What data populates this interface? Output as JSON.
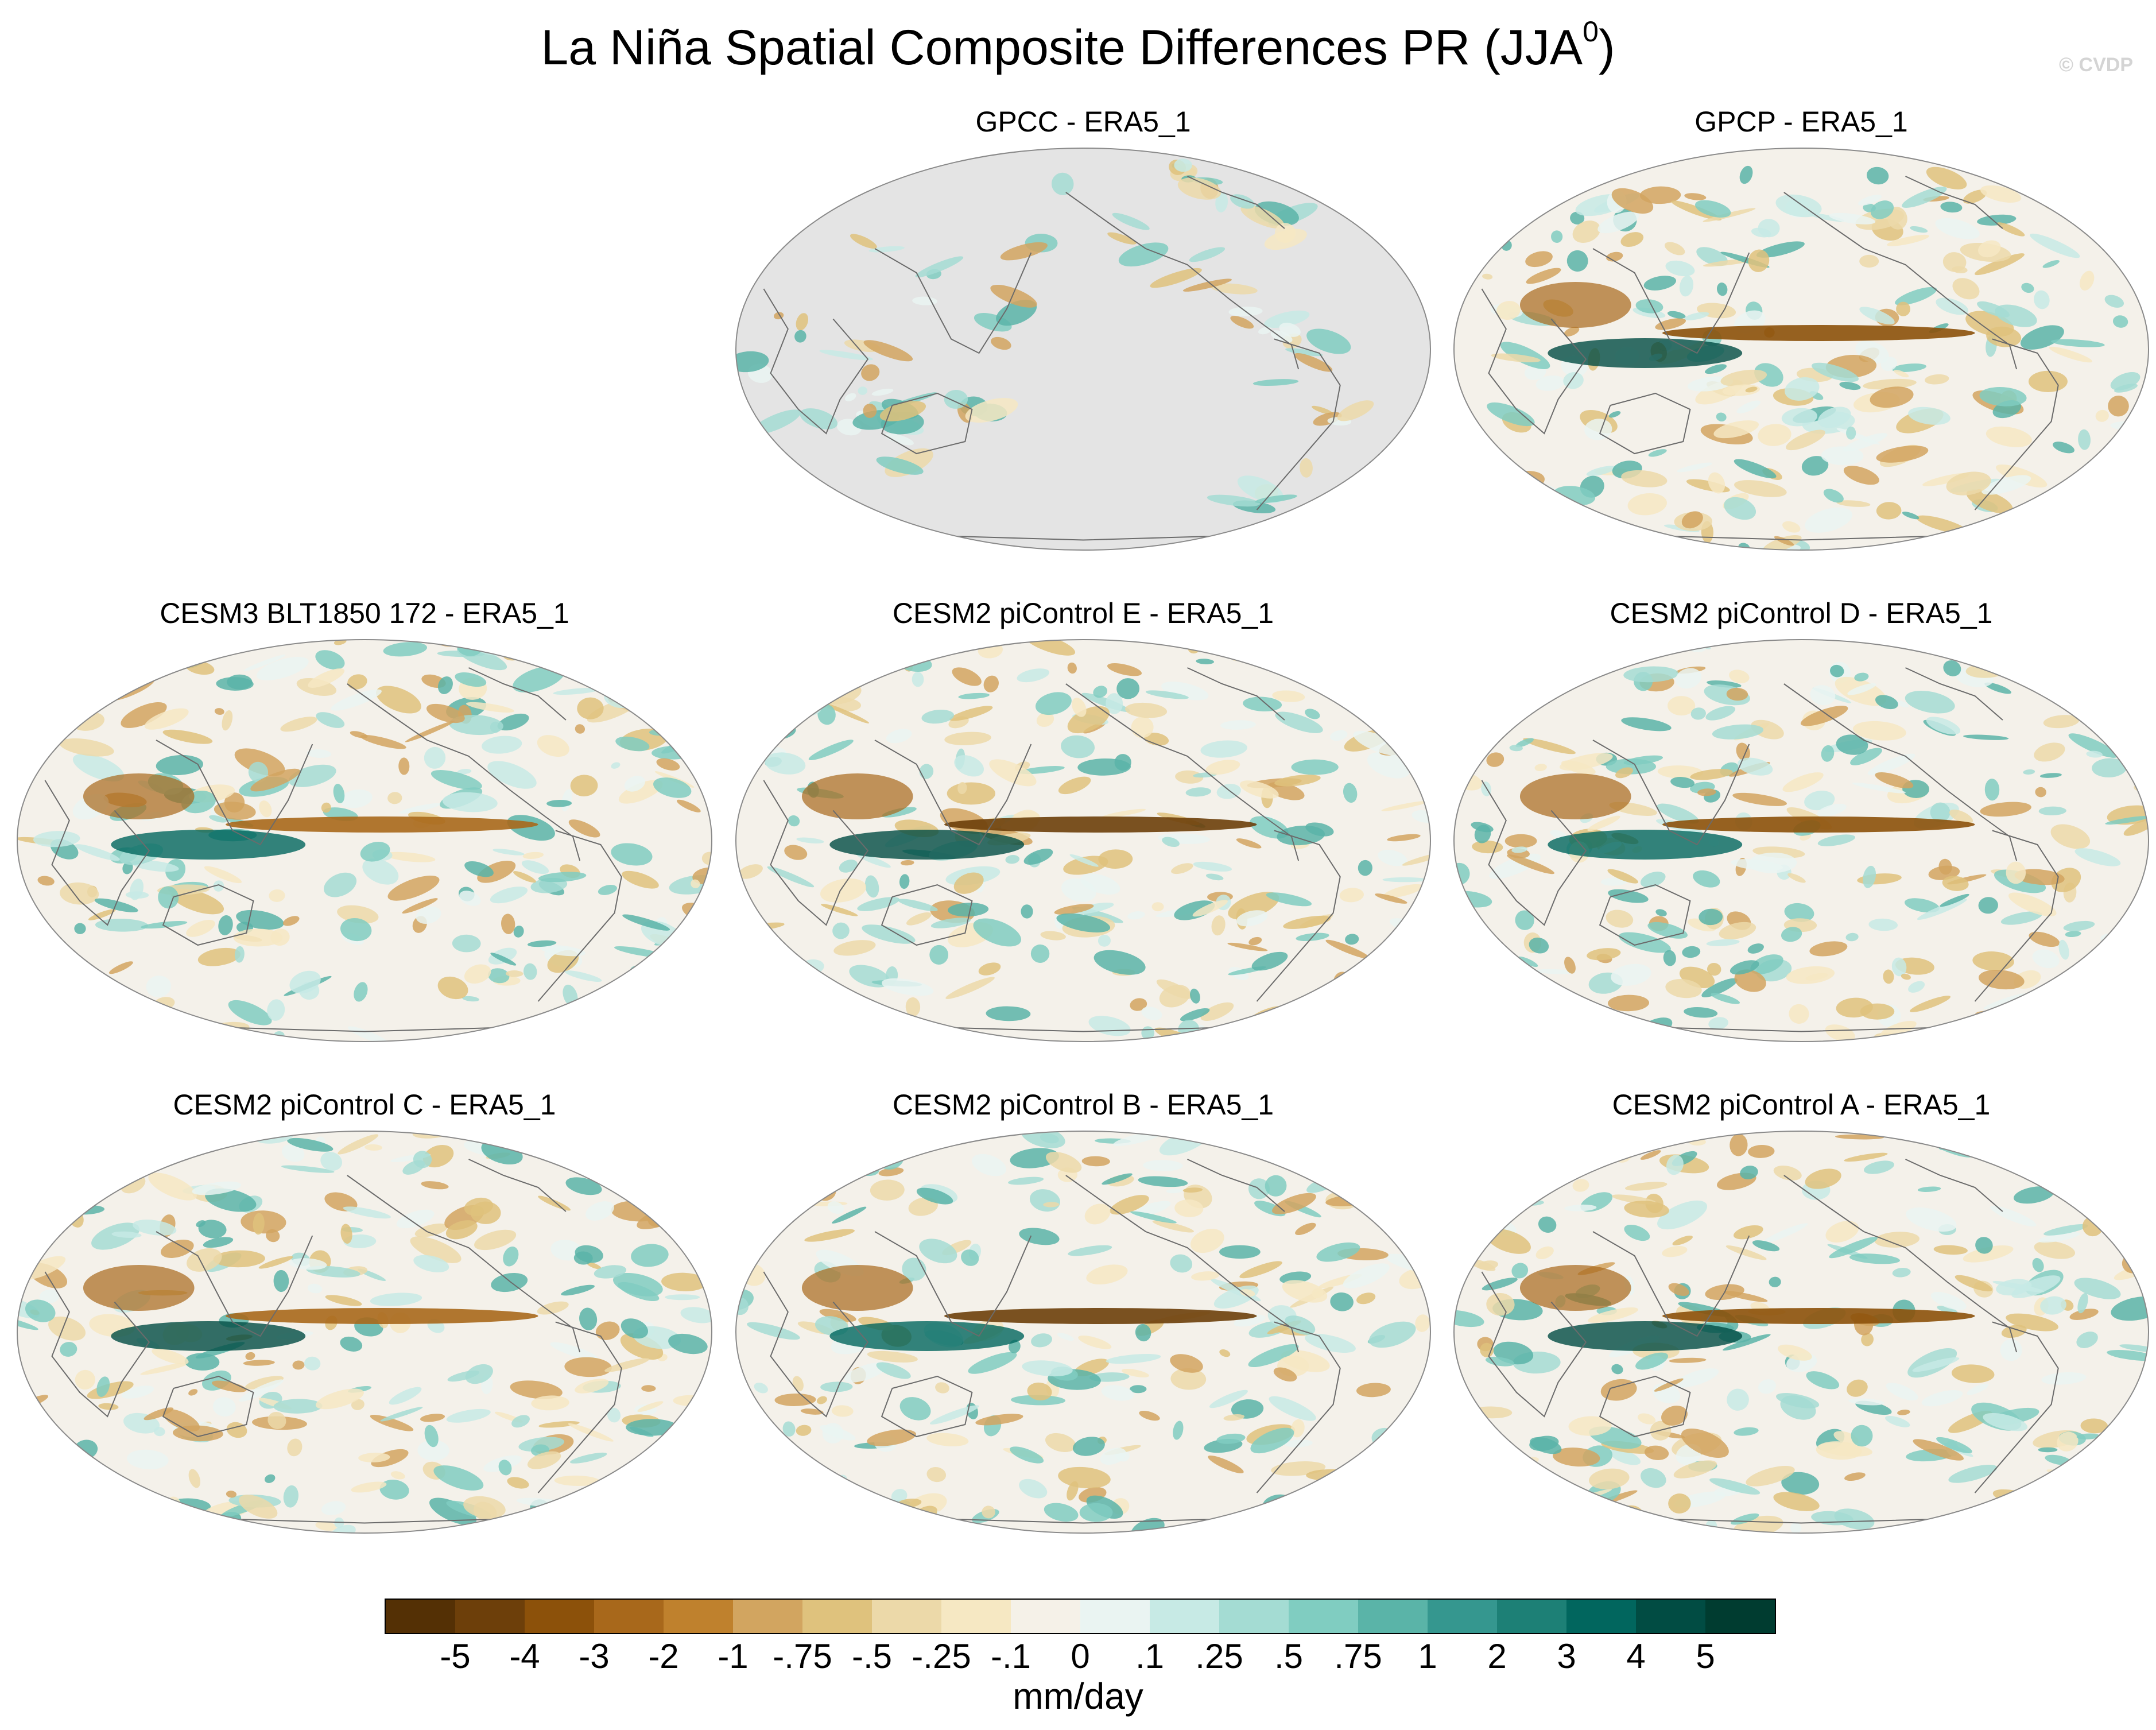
{
  "title": {
    "main": "La Niña Spatial Composite Differences PR (JJA",
    "superscript": "0",
    "close": ")"
  },
  "watermark": "© CVDP",
  "panels": [
    {
      "id": "gpcc",
      "title": "GPCC - ERA5_1",
      "row": 0,
      "col": 1,
      "land_only": true
    },
    {
      "id": "gpcp",
      "title": "GPCP - ERA5_1",
      "row": 0,
      "col": 2,
      "land_only": false
    },
    {
      "id": "cesm3-blt1850",
      "title": "CESM3 BLT1850 172 - ERA5_1",
      "row": 1,
      "col": 0,
      "land_only": false
    },
    {
      "id": "cesm2-e",
      "title": "CESM2 piControl E - ERA5_1",
      "row": 1,
      "col": 1,
      "land_only": false
    },
    {
      "id": "cesm2-d",
      "title": "CESM2 piControl D - ERA5_1",
      "row": 1,
      "col": 2,
      "land_only": false
    },
    {
      "id": "cesm2-c",
      "title": "CESM2 piControl C - ERA5_1",
      "row": 2,
      "col": 0,
      "land_only": false
    },
    {
      "id": "cesm2-b",
      "title": "CESM2 piControl B - ERA5_1",
      "row": 2,
      "col": 1,
      "land_only": false
    },
    {
      "id": "cesm2-a",
      "title": "CESM2 piControl A - ERA5_1",
      "row": 2,
      "col": 2,
      "land_only": false
    }
  ],
  "colorbar": {
    "units": "mm/day",
    "labels": [
      "-5",
      "-4",
      "-3",
      "-2",
      "-1",
      "-.75",
      "-.5",
      "-.25",
      "-.1",
      "0",
      ".1",
      ".25",
      ".5",
      ".75",
      "1",
      "2",
      "3",
      "4",
      "5"
    ],
    "colors": [
      "#543005",
      "#6d3f0a",
      "#8c510a",
      "#a8681b",
      "#bf812d",
      "#d2a560",
      "#dfc27d",
      "#ecd9a9",
      "#f6e8c3",
      "#f5f1e8",
      "#eaf4f2",
      "#c7eae5",
      "#a4dcd3",
      "#80cdc1",
      "#5ab4a8",
      "#35978f",
      "#1d8076",
      "#01665e",
      "#014c43",
      "#003c30"
    ]
  }
}
